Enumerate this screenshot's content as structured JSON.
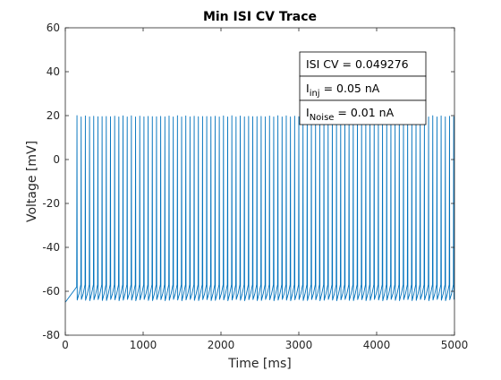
{
  "chart_data": {
    "type": "line",
    "title": "Min ISI CV Trace",
    "xlabel": "Time [ms]",
    "ylabel": "Voltage [mV]",
    "xlim": [
      0,
      5000
    ],
    "ylim": [
      -80,
      60
    ],
    "xticks": [
      0,
      1000,
      2000,
      3000,
      4000,
      5000
    ],
    "yticks": [
      -80,
      -60,
      -40,
      -20,
      0,
      20,
      40,
      60
    ],
    "grid": false,
    "series": [
      {
        "color": "#0072bd",
        "initial_potential": -65,
        "first_spike_time": 150,
        "spike_count": 91,
        "last_spike_time": 4990,
        "spike_peak": 20,
        "spike_trough": -64,
        "reset_potential": -60
      }
    ],
    "annotations": [
      {
        "main": "ISI CV = 0.049276",
        "sub": "",
        "tail": ""
      },
      {
        "main": "I",
        "sub": "inj",
        "tail": " = 0.05 nA"
      },
      {
        "main": "I",
        "sub": "Noise",
        "tail": " = 0.01 nA"
      }
    ]
  }
}
